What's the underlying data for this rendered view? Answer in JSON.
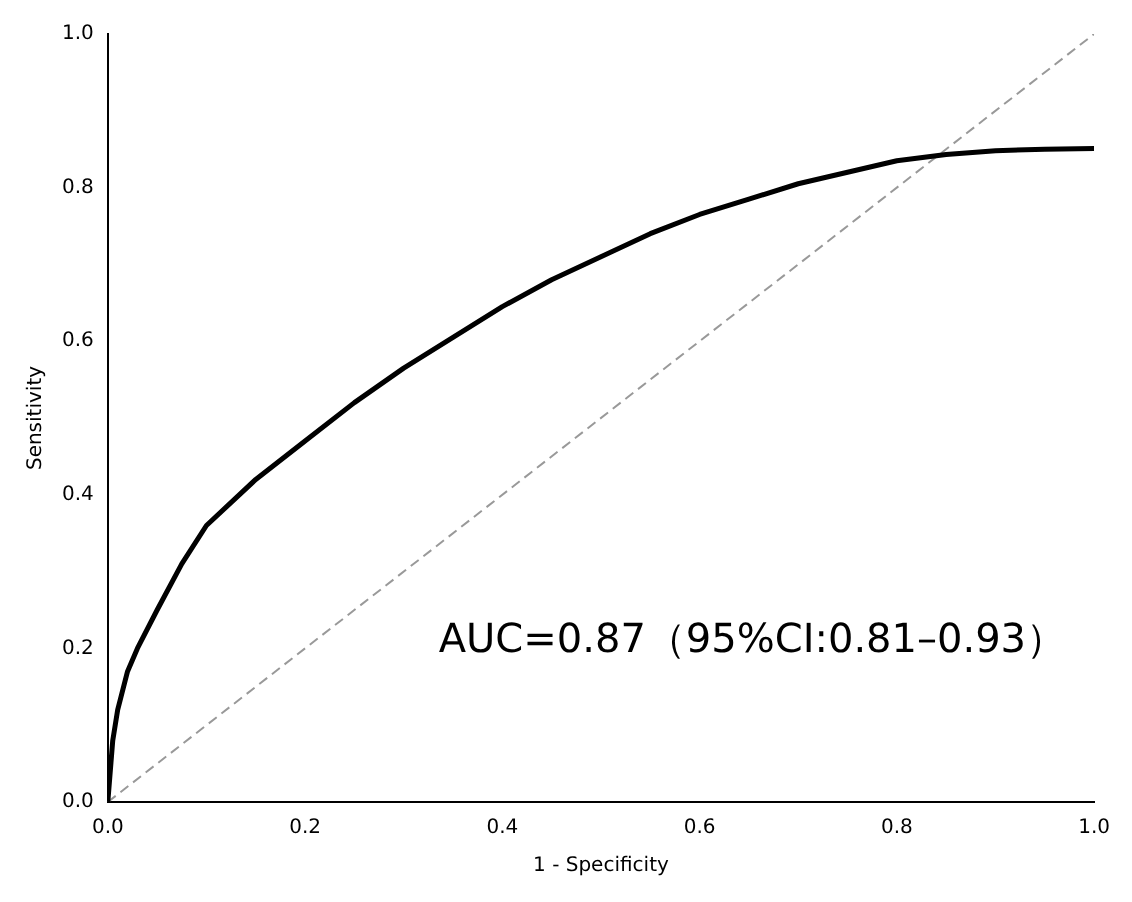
{
  "chart_data": {
    "type": "line",
    "xlabel": "1 - Specificity",
    "ylabel": "Sensitivity",
    "xlim": [
      0,
      1
    ],
    "ylim": [
      0,
      1
    ],
    "xticks": [
      {
        "value": 0,
        "label": "0.0"
      },
      {
        "value": 0.2,
        "label": "0.2"
      },
      {
        "value": 0.4,
        "label": "0.4"
      },
      {
        "value": 0.6,
        "label": "0.6"
      },
      {
        "value": 0.8,
        "label": "0.8"
      },
      {
        "value": 1,
        "label": "1.0"
      }
    ],
    "yticks": [
      {
        "value": 0,
        "label": "0.0"
      },
      {
        "value": 0.2,
        "label": "0.2"
      },
      {
        "value": 0.4,
        "label": "0.4"
      },
      {
        "value": 0.6,
        "label": "0.6"
      },
      {
        "value": 0.8,
        "label": "0.8"
      },
      {
        "value": 1,
        "label": "1.0"
      }
    ],
    "grid": false,
    "legend": false,
    "marker": "none",
    "annotations": [
      "AUC=0.87（95%CI:0.81–0.93）"
    ],
    "series": [
      {
        "color": "#000000",
        "line_style": "solid",
        "x": [
          0,
          0.005,
          0.01,
          0.02,
          0.03,
          0.05,
          0.075,
          0.1,
          0.15,
          0.2,
          0.25,
          0.3,
          0.35,
          0.4,
          0.45,
          0.5,
          0.55,
          0.6,
          0.65,
          0.7,
          0.75,
          0.8,
          0.85,
          0.9,
          0.95,
          1
        ],
        "values": [
          0,
          0.08,
          0.12,
          0.17,
          0.2,
          0.25,
          0.31,
          0.36,
          0.42,
          0.47,
          0.52,
          0.565,
          0.605,
          0.645,
          0.68,
          0.71,
          0.74,
          0.765,
          0.785,
          0.805,
          0.82,
          0.835,
          0.843,
          0.848,
          0.85,
          0.851
        ]
      },
      {
        "color": "#999999",
        "line_style": "dashed",
        "x": [
          0,
          1
        ],
        "values": [
          0,
          1
        ]
      }
    ]
  }
}
